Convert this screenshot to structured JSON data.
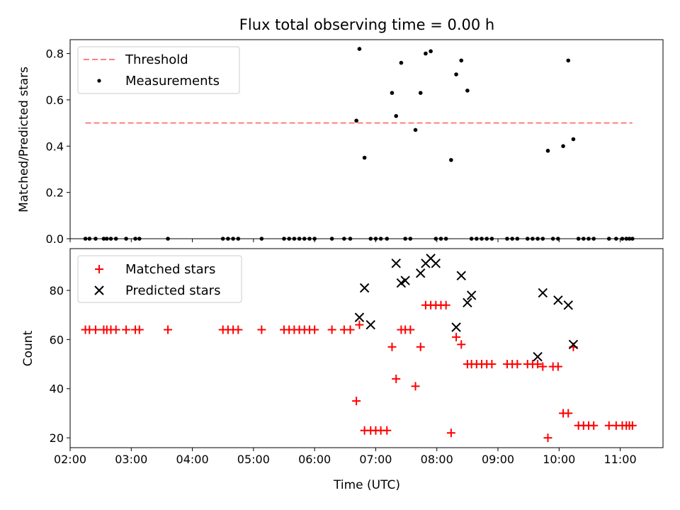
{
  "chart_data": [
    {
      "type": "scatter",
      "title": "Flux total observing time = 0.00 h",
      "xlabel": "",
      "ylabel": "Matched/Predicted stars",
      "xlim": [
        "02:00",
        "11:42"
      ],
      "ylim": [
        0,
        0.86
      ],
      "yticks": [
        0.0,
        0.2,
        0.4,
        0.6,
        0.8
      ],
      "ytick_labels": [
        "0.0",
        "0.2",
        "0.4",
        "0.6",
        "0.8"
      ],
      "legend_position": "upper-left",
      "lines": [
        {
          "name": "Threshold",
          "style": "dashed",
          "color": "#ff7f7f",
          "x": [
            "02:15",
            "11:12"
          ],
          "y": [
            0.5,
            0.5
          ]
        }
      ],
      "series": [
        {
          "name": "Measurements",
          "marker": "dot",
          "color": "#000000",
          "x": [
            "02:15",
            "02:19",
            "02:25",
            "02:33",
            "02:36",
            "02:40",
            "02:45",
            "02:55",
            "03:04",
            "03:08",
            "03:36",
            "04:30",
            "04:35",
            "04:40",
            "04:45",
            "05:08",
            "05:30",
            "05:35",
            "05:40",
            "05:45",
            "05:50",
            "05:55",
            "06:00",
            "06:17",
            "06:29",
            "06:35",
            "06:41",
            "06:44",
            "06:49",
            "06:55",
            "07:00",
            "07:05",
            "07:11",
            "07:16",
            "07:20",
            "07:25",
            "07:29",
            "07:34",
            "07:39",
            "07:44",
            "07:49",
            "07:54",
            "07:59",
            "08:04",
            "08:09",
            "08:14",
            "08:19",
            "08:24",
            "08:30",
            "08:34",
            "08:39",
            "08:44",
            "08:49",
            "08:54",
            "09:09",
            "09:14",
            "09:19",
            "09:29",
            "09:34",
            "09:39",
            "09:44",
            "09:49",
            "09:54",
            "09:59",
            "10:04",
            "10:09",
            "10:14",
            "10:19",
            "10:24",
            "10:29",
            "10:34",
            "10:49",
            "10:56",
            "11:02",
            "11:06",
            "11:09",
            "11:12"
          ],
          "y": [
            0,
            0,
            0,
            0,
            0,
            0,
            0,
            0,
            0,
            0,
            0,
            0,
            0,
            0,
            0,
            0,
            0,
            0,
            0,
            0,
            0,
            0,
            0,
            0,
            0,
            0,
            0.51,
            0.82,
            0.35,
            0,
            0,
            0,
            0,
            0.63,
            0.53,
            0.76,
            0,
            0,
            0.47,
            0.63,
            0.8,
            0.81,
            0,
            0,
            0,
            0.34,
            0.71,
            0.77,
            0.64,
            0,
            0,
            0,
            0,
            0,
            0,
            0,
            0,
            0,
            0,
            0,
            0,
            0.38,
            0,
            0,
            0.4,
            0.77,
            0.43,
            0,
            0,
            0,
            0,
            0,
            0,
            0,
            0,
            0,
            0
          ]
        }
      ]
    },
    {
      "type": "scatter",
      "title": "",
      "xlabel": "Time (UTC)",
      "ylabel": "Count",
      "xlim": [
        "02:00",
        "11:42"
      ],
      "ylim": [
        16,
        97
      ],
      "yticks": [
        20,
        40,
        60,
        80
      ],
      "ytick_labels": [
        "20",
        "40",
        "60",
        "80"
      ],
      "xticks": [
        "02:00",
        "03:00",
        "04:00",
        "05:00",
        "06:00",
        "07:00",
        "08:00",
        "09:00",
        "10:00",
        "11:00"
      ],
      "legend_position": "upper-left",
      "series": [
        {
          "name": "Matched stars",
          "marker": "plus",
          "color": "#ff0000",
          "x": [
            "02:15",
            "02:19",
            "02:25",
            "02:33",
            "02:36",
            "02:40",
            "02:45",
            "02:55",
            "03:04",
            "03:08",
            "03:36",
            "04:30",
            "04:35",
            "04:40",
            "04:45",
            "05:08",
            "05:30",
            "05:35",
            "05:40",
            "05:45",
            "05:50",
            "05:55",
            "06:00",
            "06:17",
            "06:29",
            "06:35",
            "06:41",
            "06:44",
            "06:49",
            "06:55",
            "07:00",
            "07:05",
            "07:11",
            "07:16",
            "07:20",
            "07:25",
            "07:29",
            "07:34",
            "07:39",
            "07:44",
            "07:49",
            "07:54",
            "07:59",
            "08:04",
            "08:09",
            "08:14",
            "08:19",
            "08:24",
            "08:30",
            "08:34",
            "08:39",
            "08:44",
            "08:49",
            "08:54",
            "09:09",
            "09:14",
            "09:19",
            "09:29",
            "09:34",
            "09:39",
            "09:44",
            "09:49",
            "09:54",
            "09:59",
            "10:04",
            "10:09",
            "10:14",
            "10:19",
            "10:24",
            "10:29",
            "10:34",
            "10:49",
            "10:56",
            "11:02",
            "11:06",
            "11:09",
            "11:12"
          ],
          "y": [
            64,
            64,
            64,
            64,
            64,
            64,
            64,
            64,
            64,
            64,
            64,
            64,
            64,
            64,
            64,
            64,
            64,
            64,
            64,
            64,
            64,
            64,
            64,
            64,
            64,
            64,
            35,
            66,
            23,
            23,
            23,
            23,
            23,
            57,
            44,
            64,
            64,
            64,
            41,
            57,
            74,
            74,
            74,
            74,
            74,
            22,
            61,
            58,
            50,
            50,
            50,
            50,
            50,
            50,
            50,
            50,
            50,
            50,
            50,
            50,
            49,
            20,
            49,
            49,
            30,
            30,
            57,
            25,
            25,
            25,
            25,
            25,
            25,
            25,
            25,
            25,
            25
          ]
        },
        {
          "name": "Predicted stars",
          "marker": "x",
          "color": "#000000",
          "x": [
            "06:44",
            "06:49",
            "06:55",
            "07:20",
            "07:25",
            "07:29",
            "07:44",
            "07:49",
            "07:54",
            "07:59",
            "08:19",
            "08:24",
            "08:30",
            "08:34",
            "09:39",
            "09:44",
            "09:59",
            "10:09",
            "10:14"
          ],
          "y": [
            69,
            81,
            66,
            91,
            83,
            84,
            87,
            91,
            93,
            91,
            65,
            86,
            75,
            78,
            53,
            79,
            76,
            74,
            58
          ]
        }
      ]
    }
  ]
}
